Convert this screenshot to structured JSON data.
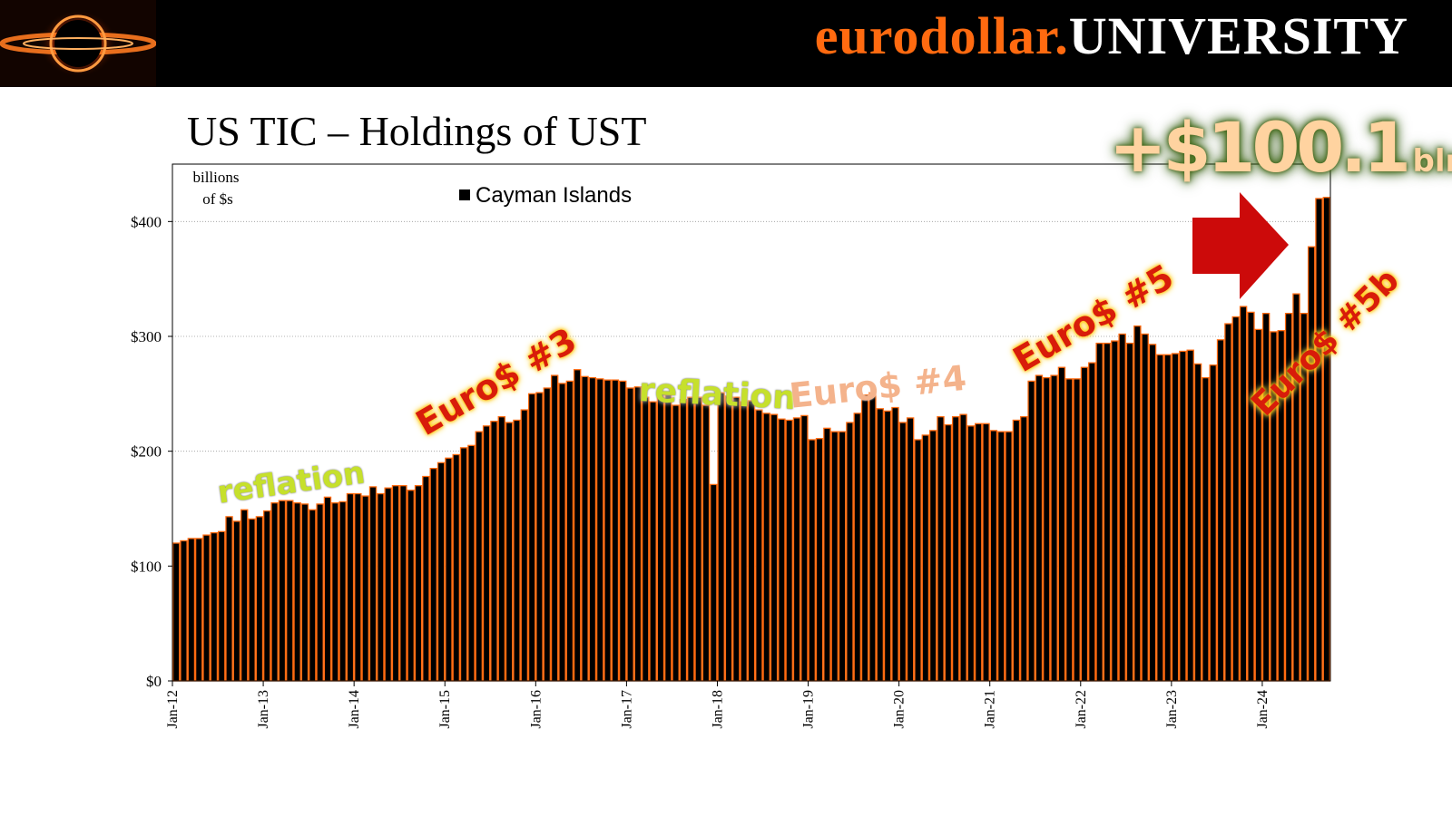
{
  "header": {
    "brand_part1": "eurodollar.",
    "brand_part2": "UNIVERSITY",
    "brand_color": "#ff6a10",
    "logo_icon": "black-hole-logo-icon"
  },
  "slide_title": "US TIC – Holdings of UST",
  "callout": {
    "value": "+$100.1",
    "unit": "bln",
    "arrow_icon": "red-arrow-right-icon"
  },
  "annotations": [
    {
      "id": "reflation-1",
      "text": "reflation",
      "style": "reflation"
    },
    {
      "id": "euro3",
      "text": "Euro$ #3",
      "style": "euro"
    },
    {
      "id": "reflation-2",
      "text": "reflation",
      "style": "reflation"
    },
    {
      "id": "euro4",
      "text": "Euro$ #4",
      "style": "euro4"
    },
    {
      "id": "euro5",
      "text": "Euro$ #5",
      "style": "euro"
    },
    {
      "id": "euro5b",
      "text": "Euro$ #5b",
      "style": "euro"
    }
  ],
  "chart_data": {
    "type": "bar",
    "title": "",
    "ylabel_lines": [
      "billions",
      "of $s"
    ],
    "legend": {
      "label": "Cayman Islands",
      "position": "top-center"
    },
    "ylim": [
      0,
      450
    ],
    "yticks": [
      0,
      100,
      200,
      300,
      400
    ],
    "ytick_labels": [
      "$0",
      "$100",
      "$200",
      "$300",
      "$400"
    ],
    "grid": true,
    "bar_color": "#000000",
    "bar_edge_color": "#ff6a10",
    "x_tick_labels": [
      "Jan-12",
      "Jan-13",
      "Jan-14",
      "Jan-15",
      "Jan-16",
      "Jan-17",
      "Jan-18",
      "Jan-19",
      "Jan-20",
      "Jan-21",
      "Jan-22",
      "Jan-23",
      "Jan-24"
    ],
    "start_month": "Jan-12",
    "end_month": "Aug-24",
    "series": [
      {
        "name": "Cayman Islands",
        "values": [
          120,
          122,
          124,
          124,
          127,
          129,
          130,
          143,
          139,
          149,
          141,
          143,
          148,
          155,
          157,
          157,
          155,
          154,
          149,
          154,
          160,
          155,
          156,
          163,
          163,
          161,
          169,
          163,
          168,
          170,
          170,
          166,
          170,
          178,
          185,
          190,
          194,
          197,
          203,
          205,
          217,
          222,
          226,
          230,
          225,
          227,
          236,
          250,
          251,
          255,
          266,
          259,
          261,
          271,
          265,
          264,
          263,
          262,
          262,
          261,
          255,
          256,
          247,
          243,
          250,
          249,
          240,
          245,
          247,
          247,
          240,
          171,
          251,
          248,
          247,
          243,
          244,
          236,
          233,
          232,
          228,
          227,
          229,
          231,
          210,
          211,
          220,
          217,
          217,
          225,
          233,
          249,
          251,
          237,
          235,
          238,
          225,
          229,
          210,
          214,
          218,
          230,
          223,
          230,
          232,
          222,
          224,
          224,
          218,
          217,
          217,
          227,
          230,
          261,
          266,
          264,
          266,
          273,
          263,
          263,
          273,
          277,
          294,
          294,
          296,
          302,
          294,
          309,
          302,
          293,
          284,
          284,
          285,
          287,
          288,
          276,
          264,
          275,
          297,
          311,
          317,
          326,
          321,
          306,
          320,
          304,
          305,
          320,
          337,
          320,
          378,
          420,
          421
        ]
      }
    ]
  }
}
